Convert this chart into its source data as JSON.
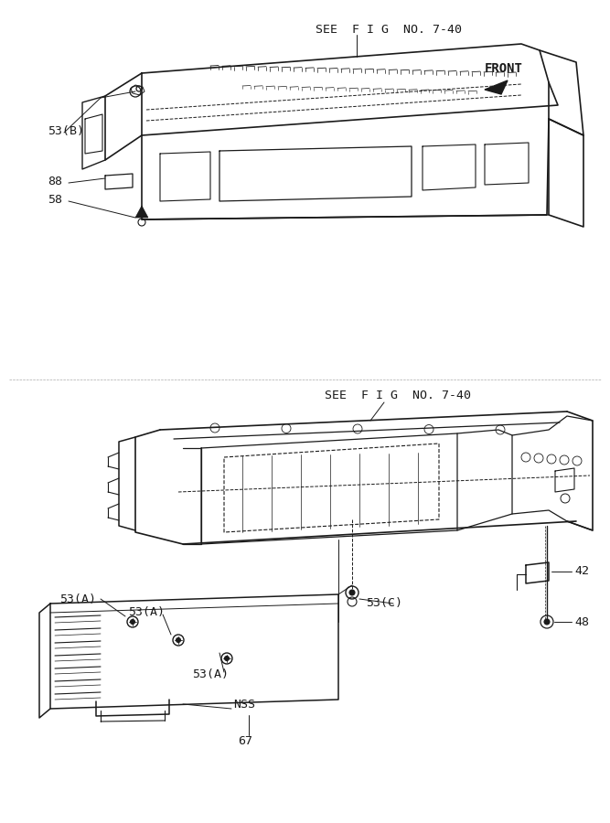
{
  "bg_color": "#ffffff",
  "line_color": "#1a1a1a",
  "fig_ref_top": "SEE  F I G  NO. 7-40",
  "fig_ref_bottom": "SEE  F I G  NO. 7-40",
  "front_label": "FRONT",
  "label_53B": "53(B)",
  "label_88": "88",
  "label_58": "58",
  "label_53A_1": "53(A)",
  "label_53A_2": "53(A)",
  "label_53A_3": "53(A)",
  "label_53C": "53(C)",
  "label_NSS": "NSS",
  "label_67": "67",
  "label_42": "42",
  "label_48": "48"
}
